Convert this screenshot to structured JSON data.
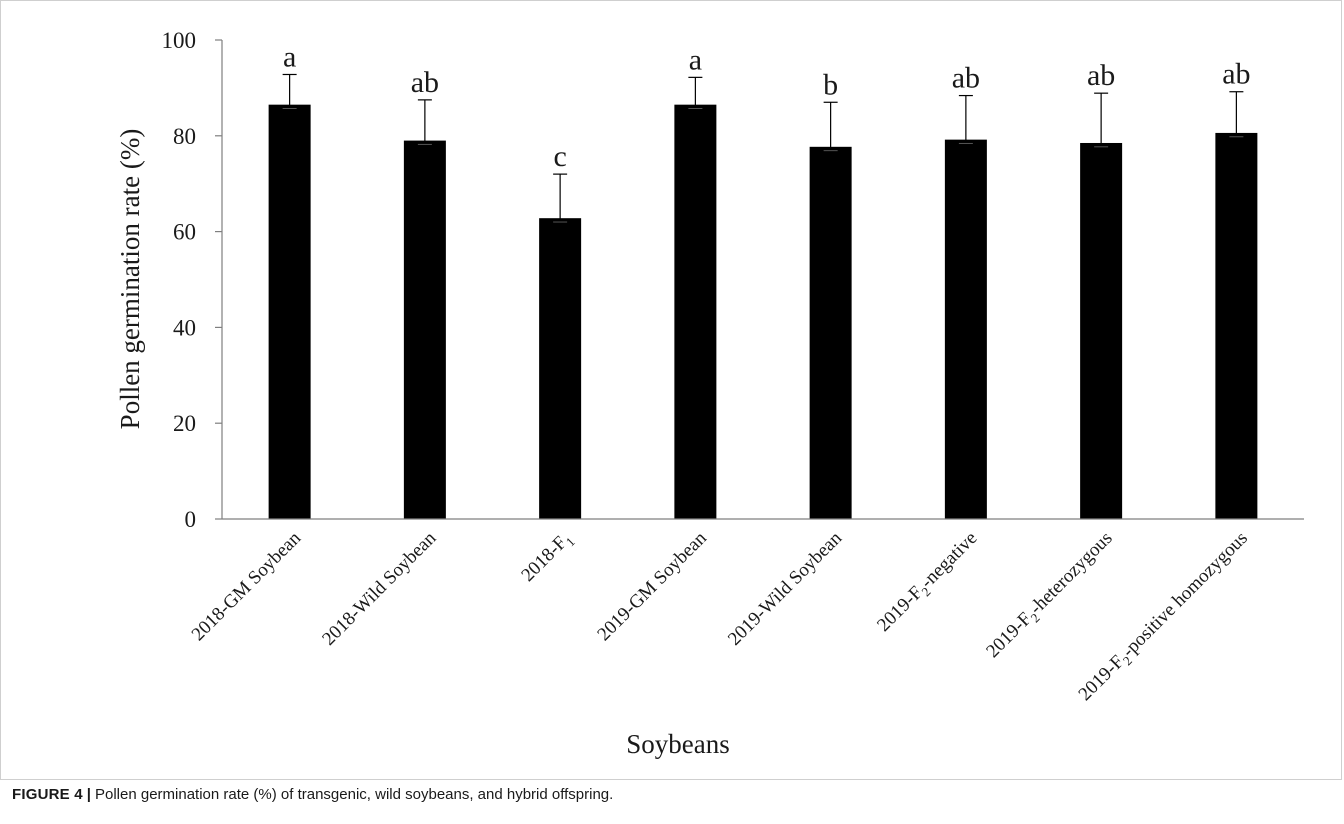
{
  "figure": {
    "label": "FIGURE 4",
    "separator": "|",
    "caption": "Pollen germination rate (%) of transgenic, wild soybeans, and hybrid offspring."
  },
  "chart_data": {
    "type": "bar",
    "title": "",
    "xlabel": "Soybeans",
    "ylabel": "Pollen germination rate (%)",
    "ylim": [
      0,
      100
    ],
    "yticks": [
      0,
      20,
      40,
      60,
      80,
      100
    ],
    "grid": false,
    "legend": "none",
    "bar_color": "#000000",
    "categories": [
      {
        "pre": "2018-GM Soybean",
        "sub": "",
        "post": ""
      },
      {
        "pre": "2018-Wild Soybean",
        "sub": "",
        "post": ""
      },
      {
        "pre": "2018-F",
        "sub": "1",
        "post": ""
      },
      {
        "pre": "2019-GM Soybean",
        "sub": "",
        "post": ""
      },
      {
        "pre": "2019-Wild Soybean",
        "sub": "",
        "post": ""
      },
      {
        "pre": "2019-F",
        "sub": "2",
        "post": "-negative"
      },
      {
        "pre": "2019-F",
        "sub": "2",
        "post": "-heterozygous"
      },
      {
        "pre": "2019-F",
        "sub": "2",
        "post": "-positive homozygous"
      }
    ],
    "values": [
      86.5,
      79.0,
      62.8,
      86.5,
      77.7,
      79.2,
      78.5,
      80.6
    ],
    "error_upper": [
      6.3,
      8.5,
      9.2,
      5.7,
      9.3,
      9.2,
      10.4,
      8.6
    ],
    "error_lower": [
      0.8,
      0.8,
      0.8,
      0.8,
      0.8,
      0.8,
      0.8,
      0.8
    ],
    "significance_letters": [
      "a",
      "ab",
      "c",
      "a",
      "b",
      "ab",
      "ab",
      "ab"
    ]
  }
}
